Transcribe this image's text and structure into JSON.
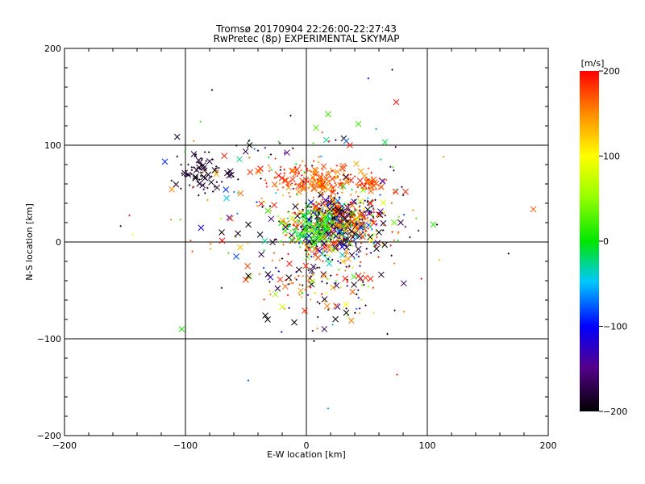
{
  "chart_data": {
    "type": "scatter",
    "title": "Tromsø 20170904 22:26:00-22:27:43",
    "subtitle": "RwPretec (8p) EXPERIMENTAL SKYMAP",
    "xlabel": "E-W location [km]",
    "ylabel": "N-S location [km]",
    "xlim": [
      -200,
      200
    ],
    "ylim": [
      -200,
      200
    ],
    "x_ticks": [
      "-200",
      "-100",
      "0",
      "100",
      "200"
    ],
    "y_ticks": [
      "-200",
      "-100",
      "0",
      "100",
      "200"
    ],
    "grid": "major lines at ±100 and 0",
    "colorbar": {
      "label": "[m/s]",
      "range": [
        -200,
        200
      ],
      "ticks": [
        "200",
        "100",
        "0",
        "-100",
        "-200"
      ],
      "colormap": "black-purple-blue-cyan-green-yellow-orange-red"
    },
    "clusters": [
      {
        "cx": 25,
        "cy": 20,
        "sx": 18,
        "sy": 14,
        "n": 700,
        "vmin": -200,
        "vmax": 200
      },
      {
        "cx": 10,
        "cy": 65,
        "sx": 22,
        "sy": 8,
        "n": 180,
        "vmin": 140,
        "vmax": 200
      },
      {
        "cx": 5,
        "cy": 12,
        "sx": 10,
        "sy": 8,
        "n": 130,
        "vmin": -30,
        "vmax": 60
      },
      {
        "cx": -88,
        "cy": 70,
        "sx": 9,
        "sy": 10,
        "n": 80,
        "vmin": -200,
        "vmax": -175
      },
      {
        "cx": 55,
        "cy": 60,
        "sx": 6,
        "sy": 3,
        "n": 40,
        "vmin": 160,
        "vmax": 200
      },
      {
        "cx": 10,
        "cy": -40,
        "sx": 28,
        "sy": 25,
        "n": 160,
        "vmin": -200,
        "vmax": 200
      },
      {
        "cx": 0,
        "cy": 40,
        "sx": 60,
        "sy": 45,
        "n": 200,
        "vmin": -200,
        "vmax": 200
      }
    ],
    "points": [
      {
        "x": -103,
        "y": -90,
        "v": 10,
        "m": "x"
      },
      {
        "x": -117,
        "y": 83,
        "v": -90,
        "m": "x"
      },
      {
        "x": -78,
        "y": 157,
        "v": -200,
        "m": "+"
      },
      {
        "x": 18,
        "y": 132,
        "v": 20,
        "m": "x"
      },
      {
        "x": 43,
        "y": 122,
        "v": 20,
        "m": "x"
      },
      {
        "x": 8,
        "y": 118,
        "v": 30,
        "m": "x"
      },
      {
        "x": 65,
        "y": 103,
        "v": -10,
        "m": "x"
      },
      {
        "x": 105,
        "y": 18,
        "v": 10,
        "m": "x"
      },
      {
        "x": 108,
        "y": 18,
        "v": -200,
        "m": "+"
      },
      {
        "x": -48,
        "y": -143,
        "v": -80,
        "m": "+"
      },
      {
        "x": 18,
        "y": -172,
        "v": -60,
        "m": "+"
      },
      {
        "x": 75,
        "y": -137,
        "v": 190,
        "m": "+"
      },
      {
        "x": 67,
        "y": -95,
        "v": -200,
        "m": "+"
      },
      {
        "x": -32,
        "y": -80,
        "v": -200,
        "m": "x"
      },
      {
        "x": -10,
        "y": -83,
        "v": -200,
        "m": "x"
      },
      {
        "x": 33,
        "y": -73,
        "v": -200,
        "m": "x"
      },
      {
        "x": -58,
        "y": -15,
        "v": -80,
        "m": "x"
      },
      {
        "x": -48,
        "y": 18,
        "v": -200,
        "m": "x"
      },
      {
        "x": -70,
        "y": 10,
        "v": -200,
        "m": "x"
      },
      {
        "x": 58,
        "y": -7,
        "v": -200,
        "m": "x"
      },
      {
        "x": 95,
        "y": -38,
        "v": 190,
        "m": "+"
      },
      {
        "x": 53,
        "y": -38,
        "v": 190,
        "m": "x"
      },
      {
        "x": 43,
        "y": -35,
        "v": 190,
        "m": "x"
      },
      {
        "x": -47,
        "y": 100,
        "v": -200,
        "m": "x"
      },
      {
        "x": 36,
        "y": 100,
        "v": 190,
        "m": "x"
      },
      {
        "x": 82,
        "y": 52,
        "v": 190,
        "m": "x"
      },
      {
        "x": -48,
        "y": -35,
        "v": -200,
        "m": "x"
      },
      {
        "x": 60,
        "y": 10,
        "v": -200,
        "m": "x"
      },
      {
        "x": -20,
        "y": -67,
        "v": 80,
        "m": "x"
      }
    ]
  }
}
